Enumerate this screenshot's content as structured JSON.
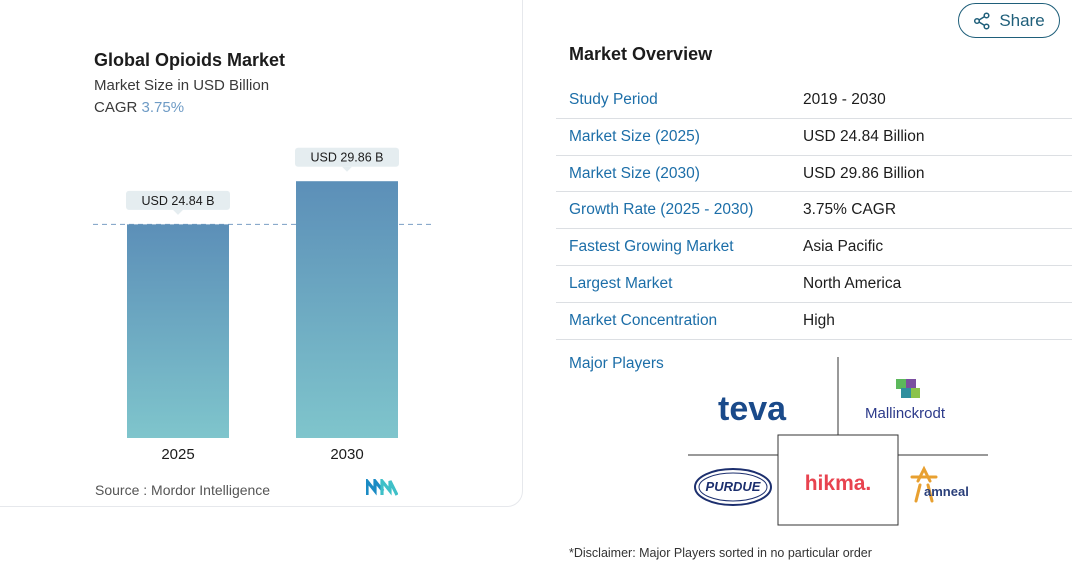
{
  "chart": {
    "title": "Global Opioids Market",
    "subtitle": "Market Size in USD Billion",
    "cagr_label": "CAGR",
    "cagr_value": "3.75%",
    "source": "Source :  Mordor Intelligence",
    "bar_labels": [
      "USD 24.84 B",
      "USD 29.86 B"
    ],
    "colors": {
      "bar_top": "#5c8fb8",
      "bar_bottom": "#7fc5cc",
      "callout": "#e5edf0",
      "dashed": "#7a9fc4"
    }
  },
  "chart_data": {
    "type": "bar",
    "categories": [
      "2025",
      "2030"
    ],
    "values": [
      24.84,
      29.86
    ],
    "title": "Global Opioids Market",
    "ylabel": "Market Size in USD Billion",
    "ylim": [
      0,
      30
    ]
  },
  "share": {
    "label": "Share",
    "icon": "share-icon"
  },
  "overview": {
    "title": "Market Overview",
    "rows": [
      {
        "label": "Study Period",
        "value": "2019 - 2030"
      },
      {
        "label": "Market Size (2025)",
        "value": "USD 24.84 Billion"
      },
      {
        "label": "Market Size (2030)",
        "value": "USD 29.86 Billion"
      },
      {
        "label": "Growth Rate (2025 - 2030)",
        "value": "3.75% CAGR"
      },
      {
        "label": "Fastest Growing Market",
        "value": "Asia Pacific"
      },
      {
        "label": "Largest Market",
        "value": "North America"
      },
      {
        "label": "Market Concentration",
        "value": "High"
      }
    ]
  },
  "players": {
    "title": "Major Players",
    "logos": [
      "teva",
      "Mallinckrodt",
      "PURDUE",
      "hikma.",
      "amneal"
    ]
  },
  "disclaimer": "*Disclaimer: Major Players sorted in no particular order"
}
